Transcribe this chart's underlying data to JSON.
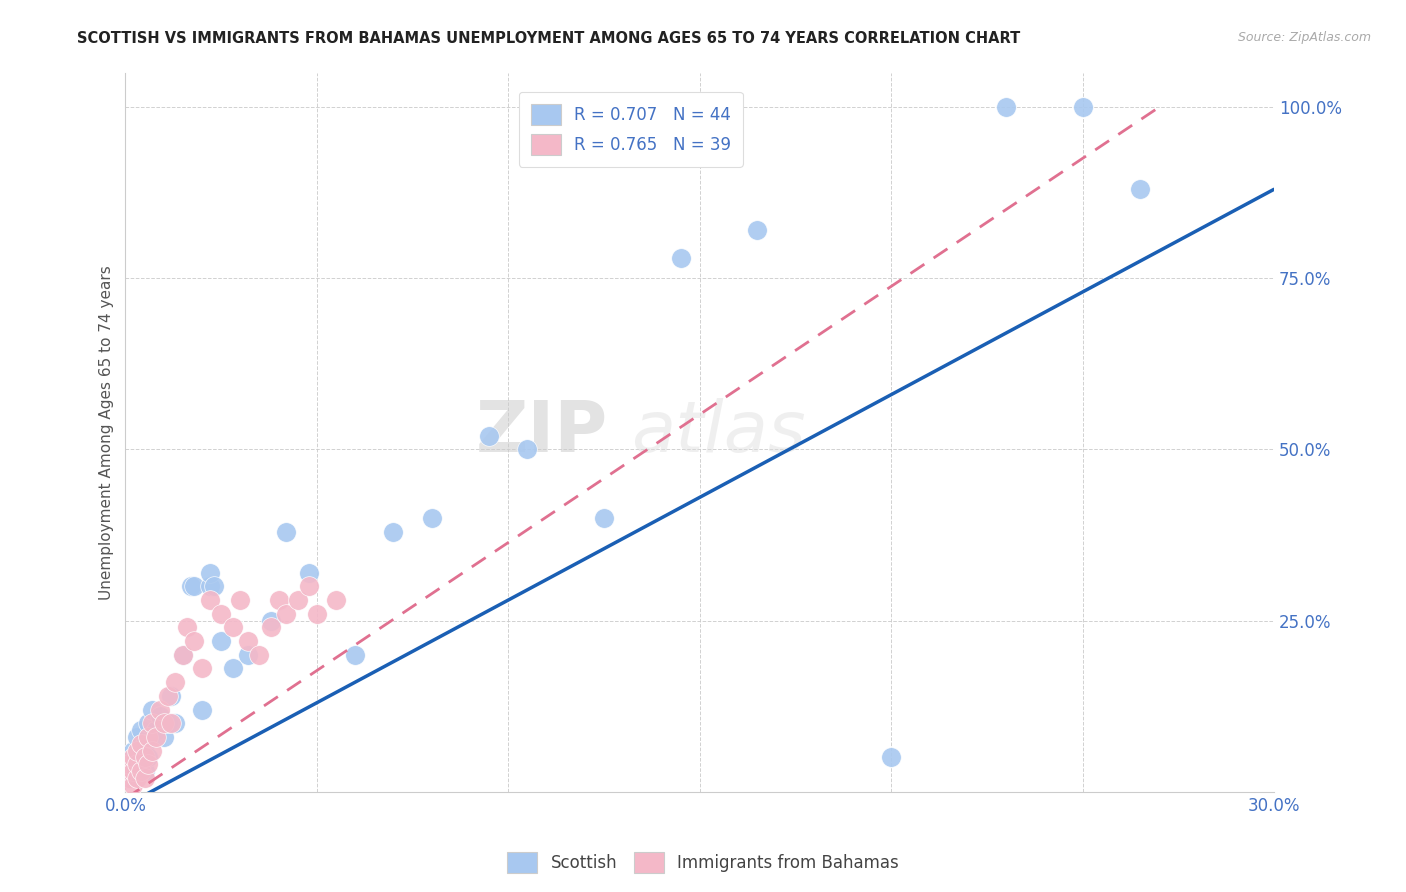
{
  "title": "SCOTTISH VS IMMIGRANTS FROM BAHAMAS UNEMPLOYMENT AMONG AGES 65 TO 74 YEARS CORRELATION CHART",
  "source": "Source: ZipAtlas.com",
  "ylabel": "Unemployment Among Ages 65 to 74 years",
  "xlim": [
    0.0,
    0.3
  ],
  "ylim": [
    0.0,
    1.05
  ],
  "scottish_color": "#a8c8f0",
  "bahamas_color": "#f4b8c8",
  "trendline_scottish_color": "#1a5fb4",
  "trendline_bahamas_color": "#e07090",
  "legend_r_scottish": "R = 0.707",
  "legend_n_scottish": "N = 44",
  "legend_r_bahamas": "R = 0.765",
  "legend_n_bahamas": "N = 39",
  "watermark_zip": "ZIP",
  "watermark_atlas": "atlas",
  "scottish_x": [
    0.001,
    0.001,
    0.002,
    0.002,
    0.003,
    0.003,
    0.004,
    0.004,
    0.005,
    0.005,
    0.006,
    0.006,
    0.007,
    0.008,
    0.009,
    0.01,
    0.011,
    0.012,
    0.013,
    0.015,
    0.017,
    0.018,
    0.02,
    0.022,
    0.022,
    0.023,
    0.025,
    0.028,
    0.032,
    0.038,
    0.042,
    0.048,
    0.06,
    0.07,
    0.08,
    0.095,
    0.105,
    0.125,
    0.145,
    0.165,
    0.2,
    0.23,
    0.25,
    0.265
  ],
  "scottish_y": [
    0.02,
    0.04,
    0.03,
    0.06,
    0.05,
    0.08,
    0.04,
    0.09,
    0.03,
    0.07,
    0.05,
    0.1,
    0.12,
    0.09,
    0.11,
    0.08,
    0.1,
    0.14,
    0.1,
    0.2,
    0.3,
    0.3,
    0.12,
    0.3,
    0.32,
    0.3,
    0.22,
    0.18,
    0.2,
    0.25,
    0.38,
    0.32,
    0.2,
    0.38,
    0.4,
    0.52,
    0.5,
    0.4,
    0.78,
    0.82,
    0.05,
    1.0,
    1.0,
    0.88
  ],
  "bahamas_x": [
    0.001,
    0.001,
    0.002,
    0.002,
    0.002,
    0.003,
    0.003,
    0.003,
    0.004,
    0.004,
    0.005,
    0.005,
    0.006,
    0.006,
    0.007,
    0.007,
    0.008,
    0.009,
    0.01,
    0.011,
    0.012,
    0.013,
    0.015,
    0.016,
    0.018,
    0.02,
    0.022,
    0.025,
    0.028,
    0.03,
    0.032,
    0.035,
    0.038,
    0.04,
    0.042,
    0.045,
    0.048,
    0.05,
    0.055
  ],
  "bahamas_y": [
    0.02,
    0.04,
    0.01,
    0.03,
    0.05,
    0.02,
    0.04,
    0.06,
    0.03,
    0.07,
    0.02,
    0.05,
    0.04,
    0.08,
    0.06,
    0.1,
    0.08,
    0.12,
    0.1,
    0.14,
    0.1,
    0.16,
    0.2,
    0.24,
    0.22,
    0.18,
    0.28,
    0.26,
    0.24,
    0.28,
    0.22,
    0.2,
    0.24,
    0.28,
    0.26,
    0.28,
    0.3,
    0.26,
    0.28
  ],
  "trendline_s_x0": 0.0,
  "trendline_s_y0": -0.02,
  "trendline_s_x1": 0.3,
  "trendline_s_y1": 0.88,
  "trendline_b_x0": 0.0,
  "trendline_b_y0": -0.01,
  "trendline_b_x1": 0.27,
  "trendline_b_y1": 1.0
}
